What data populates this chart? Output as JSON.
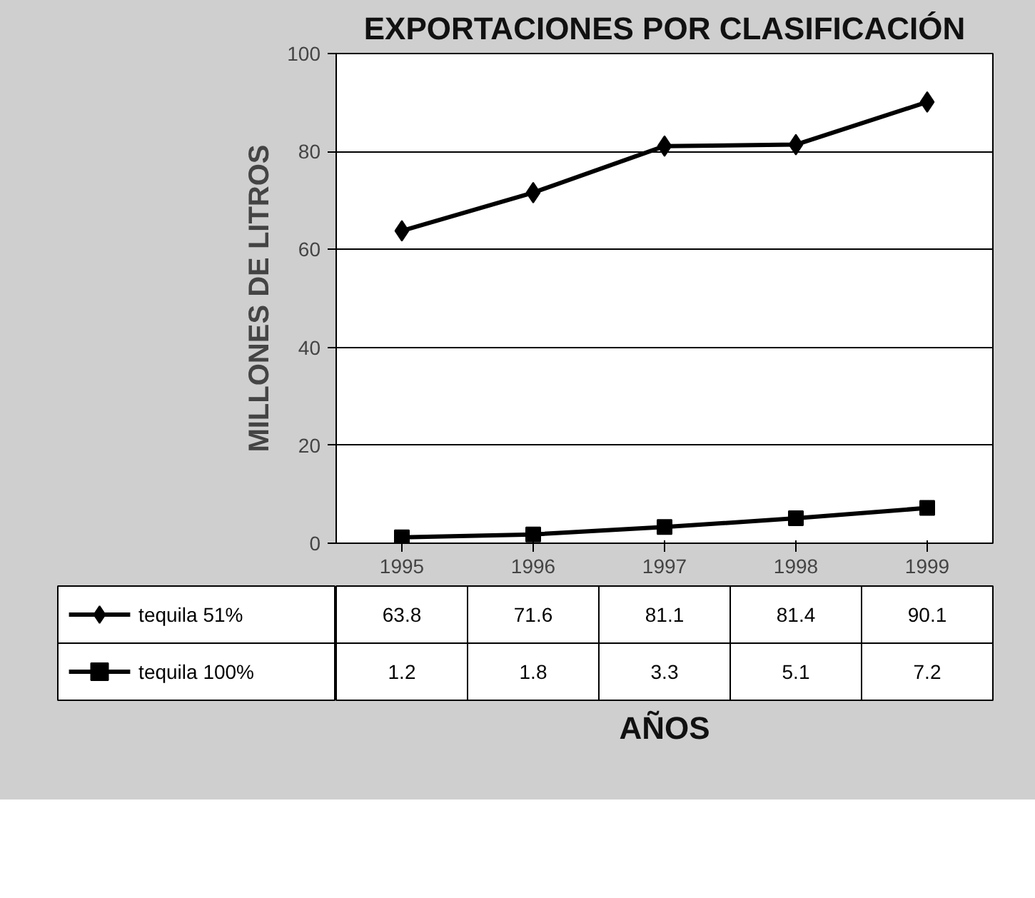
{
  "chart_data": {
    "type": "line",
    "title": "EXPORTACIONES POR CLASIFICACIÓN",
    "xlabel": "AÑOS",
    "ylabel": "MILLONES DE LITROS",
    "categories": [
      "1995",
      "1996",
      "1997",
      "1998",
      "1999"
    ],
    "series": [
      {
        "name": "tequila 51%",
        "color": "#000000",
        "marker": "diamond",
        "values": [
          63.8,
          71.6,
          81.1,
          81.4,
          90.1
        ]
      },
      {
        "name": "tequila 100%",
        "color": "#000000",
        "marker": "square",
        "values": [
          1.2,
          1.8,
          3.3,
          5.1,
          7.2
        ]
      }
    ],
    "ylim": [
      0,
      100
    ],
    "yticks": [
      0,
      20,
      40,
      60,
      80,
      100
    ],
    "grid": "y",
    "legend": "bottom",
    "data_labels": true,
    "line_style": "solid"
  }
}
